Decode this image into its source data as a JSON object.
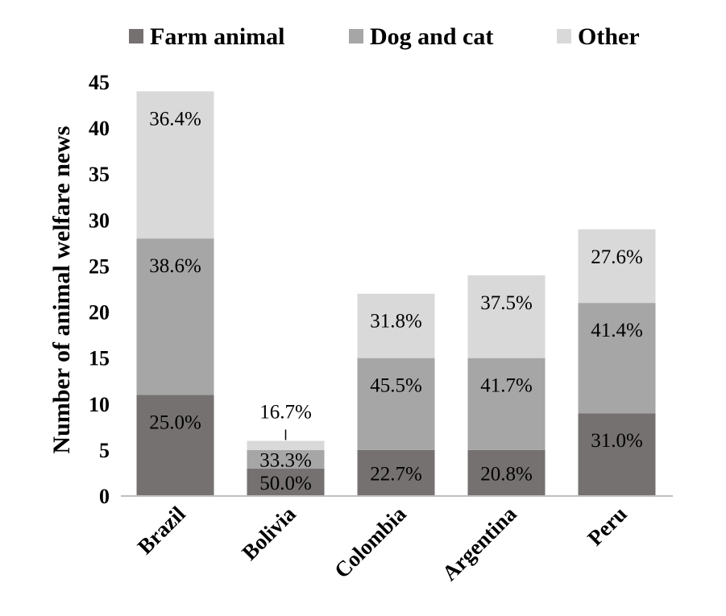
{
  "chart_data": {
    "type": "bar",
    "stacked": true,
    "categories": [
      "Brazil",
      "Bolivia",
      "Colombia",
      "Argentina",
      "Peru"
    ],
    "series": [
      {
        "name": "Farm animal",
        "color": "#767171",
        "values": [
          11,
          3,
          5,
          5,
          9
        ],
        "labels": [
          "25.0%",
          "50.0%",
          "22.7%",
          "20.8%",
          "31.0%"
        ]
      },
      {
        "name": "Dog and cat",
        "color": "#a6a6a6",
        "values": [
          17,
          2,
          10,
          10,
          12
        ],
        "labels": [
          "38.6%",
          "33.3%",
          "45.5%",
          "41.7%",
          "41.4%"
        ]
      },
      {
        "name": "Other",
        "color": "#d9d9d9",
        "values": [
          16,
          1,
          7,
          9,
          8
        ],
        "labels": [
          "36.4%",
          "16.7%",
          "31.8%",
          "37.5%",
          "27.6%"
        ]
      }
    ],
    "title": "",
    "xlabel": "",
    "ylabel": "Number of animal welfare news",
    "ylim": [
      0,
      45
    ],
    "yticks": [
      0,
      5,
      10,
      15,
      20,
      25,
      30,
      35,
      40,
      45
    ],
    "grid": false,
    "legend": "top"
  }
}
